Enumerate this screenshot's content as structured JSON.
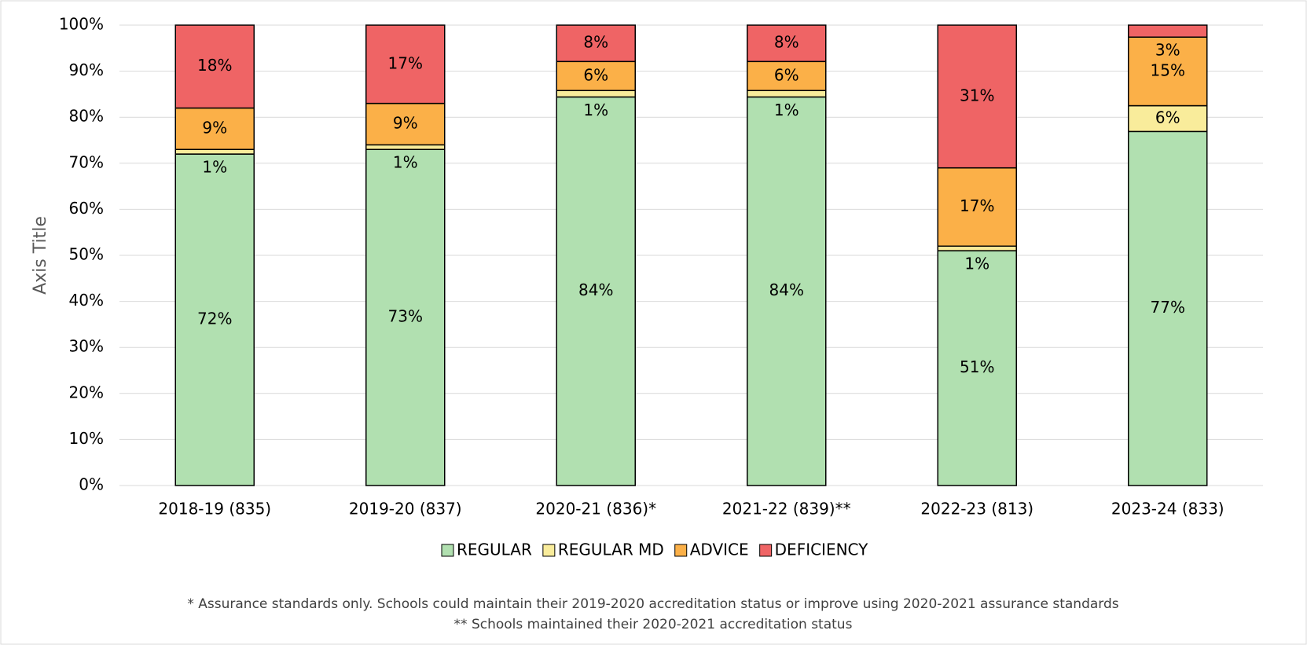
{
  "chart_data": {
    "type": "stacked_bar",
    "y_axis_title": "Axis Title",
    "categories": [
      "2018-19 (835)",
      "2019-20 (837)",
      "2020-21 (836)*",
      "2021-22 (839)**",
      "2022-23 (813)",
      "2023-24 (833)"
    ],
    "series": [
      {
        "name": "REGULAR",
        "color": "#b1e0b0",
        "values": [
          72,
          73,
          84.4,
          84.4,
          51,
          76.9
        ],
        "value_labels": [
          "72%",
          "73%",
          "84%",
          "84%",
          "51%",
          "77%"
        ]
      },
      {
        "name": "REGULAR MD",
        "color": "#f9ec9b",
        "values": [
          1,
          1,
          1.4,
          1.4,
          1,
          5.6
        ],
        "value_labels": [
          "1%",
          "1%",
          "1%",
          "1%",
          "1%",
          "6%"
        ]
      },
      {
        "name": "ADVICE",
        "color": "#fbb048",
        "values": [
          9,
          9,
          6.3,
          6.3,
          17,
          14.9
        ],
        "value_labels": [
          "9%",
          "9%",
          "6%",
          "6%",
          "17%",
          "15%"
        ]
      },
      {
        "name": "DEFICIENCY",
        "color": "#ef6465",
        "values": [
          18,
          17,
          7.9,
          7.9,
          31,
          2.6
        ],
        "value_labels": [
          "18%",
          "17%",
          "8%",
          "8%",
          "31%",
          "3%"
        ]
      }
    ],
    "ylim": [
      0,
      100
    ],
    "yticks": [
      {
        "value": 0,
        "label": "0%"
      },
      {
        "value": 10,
        "label": "10%"
      },
      {
        "value": 20,
        "label": "20%"
      },
      {
        "value": 30,
        "label": "30%"
      },
      {
        "value": 40,
        "label": "40%"
      },
      {
        "value": 50,
        "label": "50%"
      },
      {
        "value": 60,
        "label": "60%"
      },
      {
        "value": 70,
        "label": "70%"
      },
      {
        "value": 80,
        "label": "80%"
      },
      {
        "value": 90,
        "label": "90%"
      },
      {
        "value": 100,
        "label": "100%"
      }
    ],
    "grid": true,
    "legend": "bottom",
    "notes": [
      "* Assurance standards only. Schools could maintain their 2019-2020 accreditation status or improve using 2020-2021 assurance standards",
      "** Schools maintained their 2020-2021 accreditation status"
    ]
  }
}
